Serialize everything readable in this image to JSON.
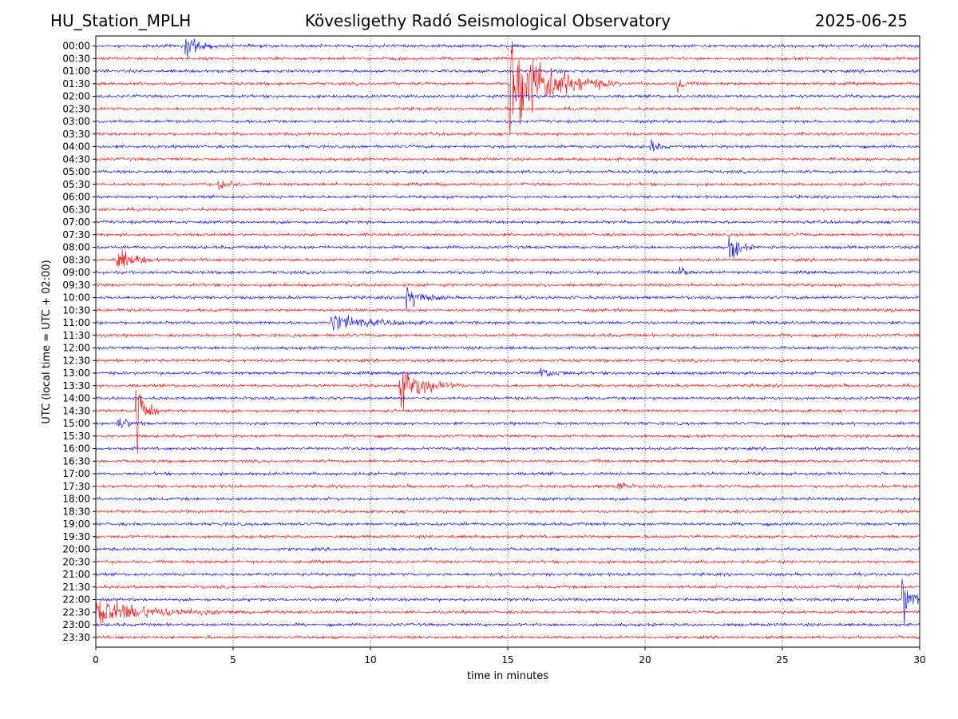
{
  "header": {
    "station": "HU_Station_MPLH",
    "title": "Kövesligethy Radó Seismological Observatory",
    "date": "2025-06-25"
  },
  "chart_data": {
    "type": "line",
    "title": "Kövesligethy Radó Seismological Observatory",
    "xlabel": "time in minutes",
    "ylabel": "UTC (local time = UTC + 02:00)",
    "xlim": [
      0,
      30
    ],
    "x_ticks": [
      0,
      5,
      10,
      15,
      20,
      25,
      30
    ],
    "grid": "vertical dotted at x ticks",
    "colors": {
      "even_rows": "#0000ff",
      "odd_rows": "#ff0000"
    },
    "rows": [
      "00:00",
      "00:30",
      "01:00",
      "01:30",
      "02:00",
      "02:30",
      "03:00",
      "03:30",
      "04:00",
      "04:30",
      "05:00",
      "05:30",
      "06:00",
      "06:30",
      "07:00",
      "07:30",
      "08:00",
      "08:30",
      "09:00",
      "09:30",
      "10:00",
      "10:30",
      "11:00",
      "11:30",
      "12:00",
      "12:30",
      "13:00",
      "13:30",
      "14:00",
      "14:30",
      "15:00",
      "15:30",
      "16:00",
      "16:30",
      "17:00",
      "17:30",
      "18:00",
      "18:30",
      "19:00",
      "19:30",
      "20:00",
      "20:30",
      "21:00",
      "21:30",
      "22:00",
      "22:30",
      "23:00",
      "23:30"
    ],
    "events": [
      {
        "row": "00:00",
        "minute": 3.3,
        "duration_min": 0.8,
        "amplitude": 0.6
      },
      {
        "row": "01:30",
        "minute": 15.1,
        "duration_min": 2.5,
        "amplitude": 2.6
      },
      {
        "row": "01:30",
        "minute": 21.2,
        "duration_min": 0.4,
        "amplitude": 0.4
      },
      {
        "row": "04:00",
        "minute": 20.2,
        "duration_min": 0.5,
        "amplitude": 0.3
      },
      {
        "row": "05:30",
        "minute": 4.5,
        "duration_min": 0.6,
        "amplitude": 0.3
      },
      {
        "row": "08:00",
        "minute": 23.1,
        "duration_min": 0.6,
        "amplitude": 0.7
      },
      {
        "row": "08:30",
        "minute": 0.8,
        "duration_min": 1.2,
        "amplitude": 0.5
      },
      {
        "row": "09:00",
        "minute": 21.3,
        "duration_min": 0.3,
        "amplitude": 0.4
      },
      {
        "row": "10:00",
        "minute": 11.3,
        "duration_min": 1.0,
        "amplitude": 0.6
      },
      {
        "row": "11:00",
        "minute": 8.6,
        "duration_min": 2.4,
        "amplitude": 0.4
      },
      {
        "row": "13:00",
        "minute": 16.2,
        "duration_min": 1.0,
        "amplitude": 0.25
      },
      {
        "row": "13:30",
        "minute": 11.1,
        "duration_min": 1.5,
        "amplitude": 1.0
      },
      {
        "row": "14:30",
        "minute": 1.5,
        "duration_min": 0.5,
        "amplitude": 2.2
      },
      {
        "row": "15:00",
        "minute": 0.8,
        "duration_min": 0.8,
        "amplitude": 0.3
      },
      {
        "row": "17:30",
        "minute": 19.0,
        "duration_min": 0.5,
        "amplitude": 0.3
      },
      {
        "row": "22:00",
        "minute": 29.4,
        "duration_min": 0.6,
        "amplitude": 1.3
      },
      {
        "row": "22:30",
        "minute": 0.0,
        "duration_min": 3.8,
        "amplitude": 0.6
      }
    ]
  }
}
